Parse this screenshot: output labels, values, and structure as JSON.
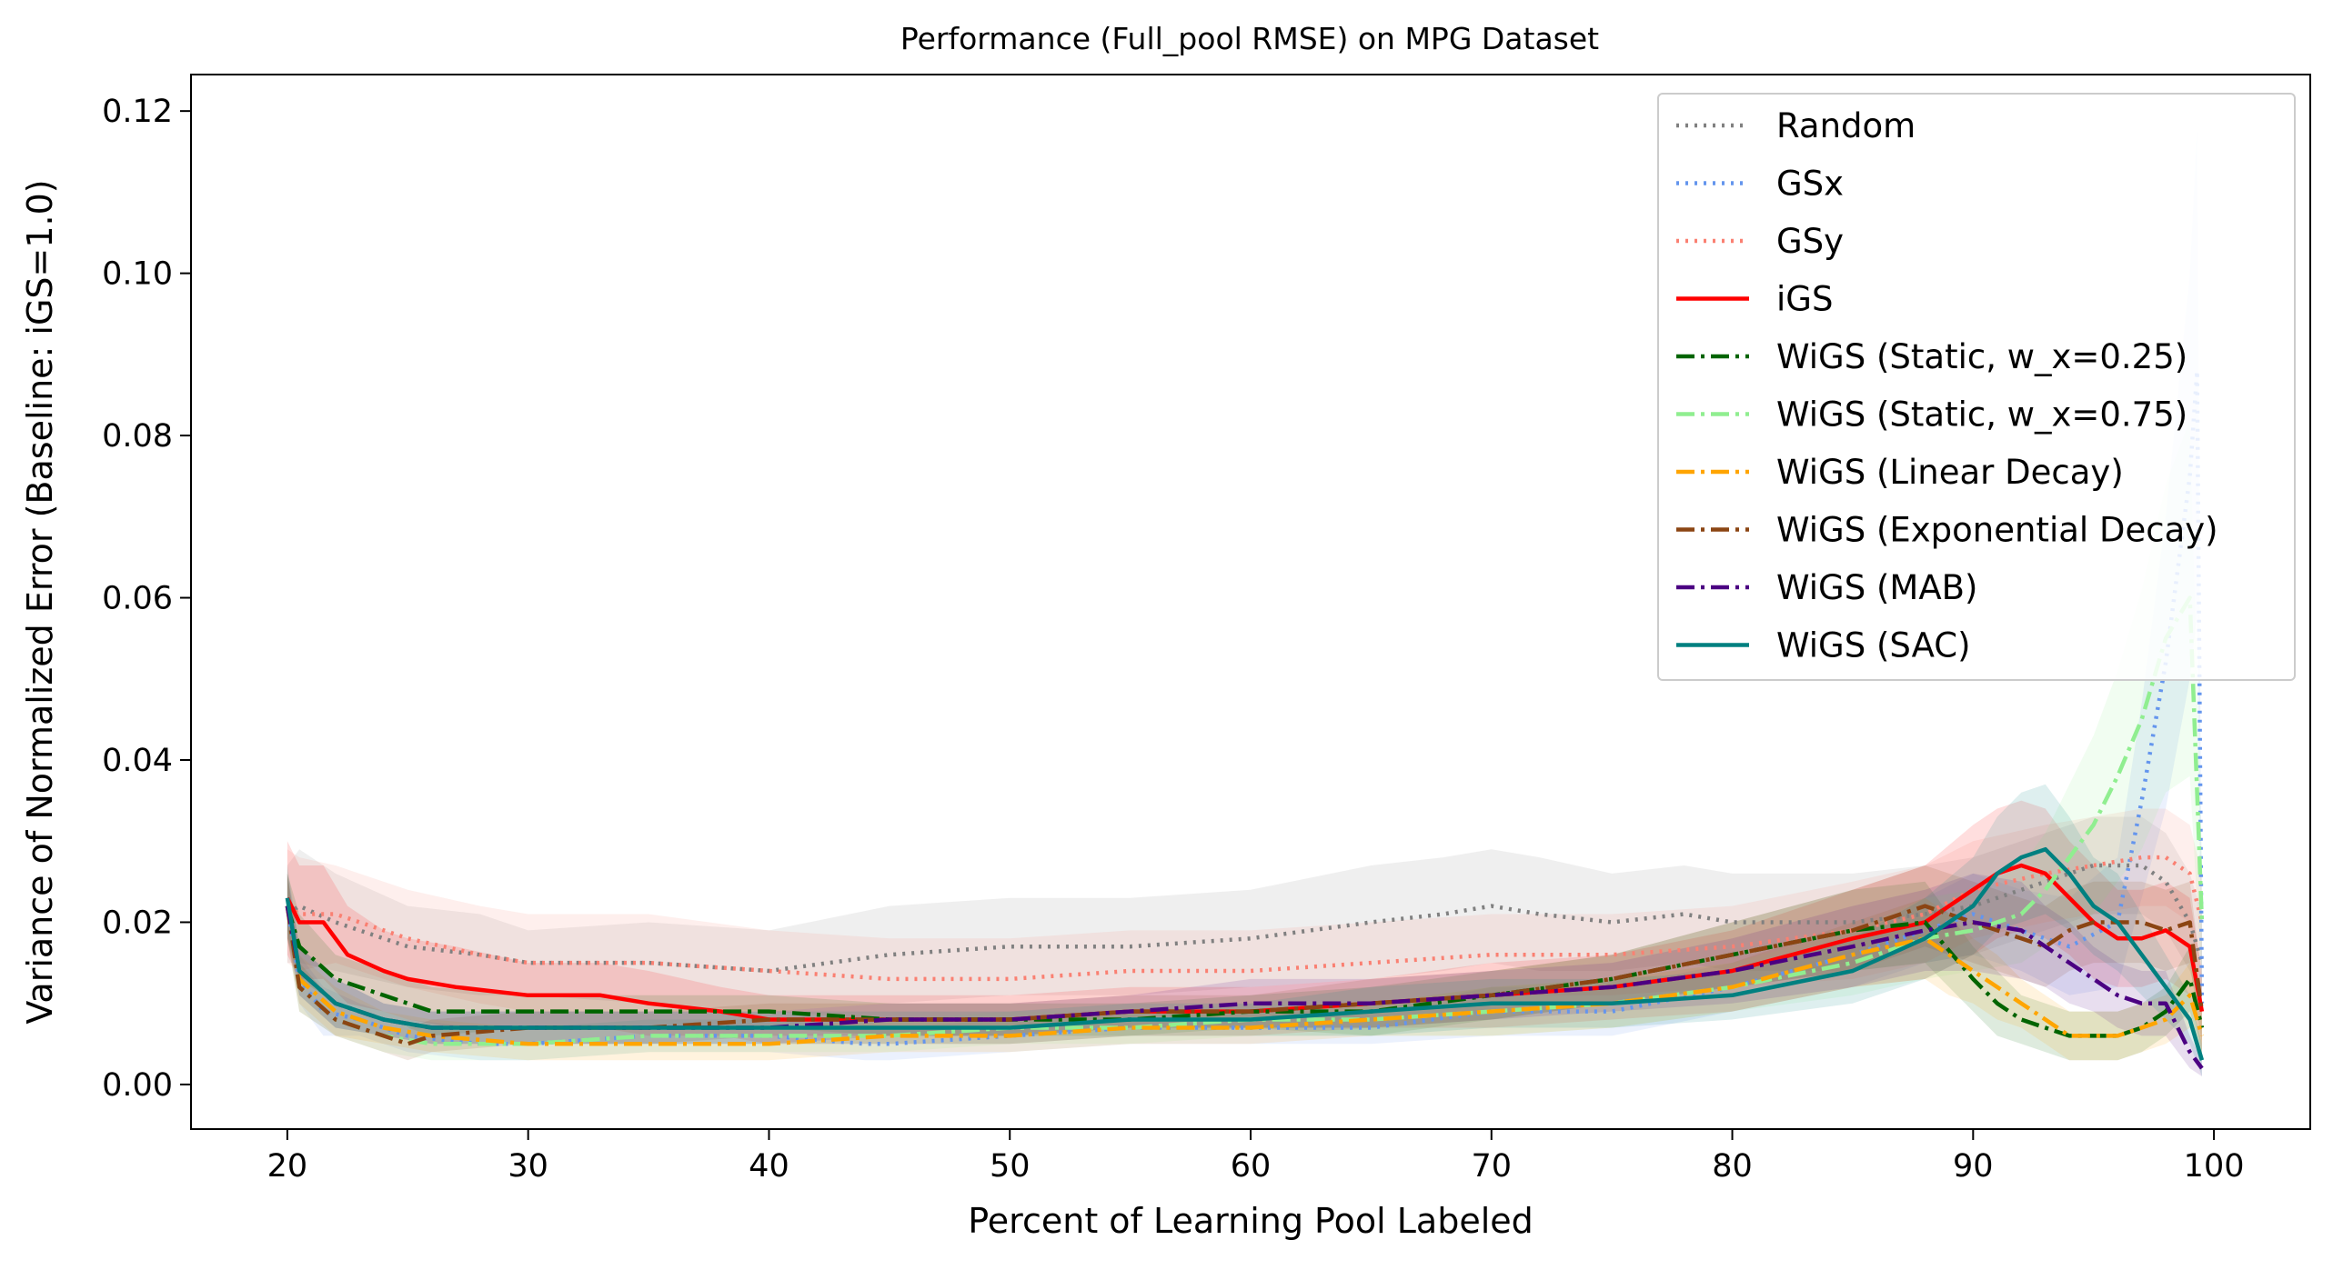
{
  "chart_data": {
    "type": "line",
    "title": "Performance (Full_pool RMSE) on MPG Dataset",
    "xlabel": "Percent of Learning Pool Labeled",
    "ylabel": "Variance of Normalized Error (Baseline: iGS=1.0)",
    "xlim": [
      16,
      104
    ],
    "ylim": [
      -0.0055,
      0.1245
    ],
    "x_ticks": [
      "20",
      "30",
      "40",
      "50",
      "60",
      "70",
      "80",
      "90",
      "100"
    ],
    "y_ticks": [
      "0.00",
      "0.02",
      "0.04",
      "0.06",
      "0.08",
      "0.10",
      "0.12"
    ],
    "grid": false,
    "legend_position": "top-right",
    "series": [
      {
        "name": "Random",
        "color": "#808080",
        "style": "dotted",
        "x": [
          20,
          20.5,
          22,
          25,
          28,
          30,
          35,
          40,
          45,
          50,
          55,
          60,
          65,
          68,
          70,
          72,
          75,
          78,
          80,
          85,
          88,
          90,
          92,
          95,
          97,
          98,
          99,
          99.5
        ],
        "y": [
          0.021,
          0.022,
          0.02,
          0.017,
          0.016,
          0.015,
          0.015,
          0.014,
          0.016,
          0.017,
          0.017,
          0.018,
          0.02,
          0.021,
          0.022,
          0.021,
          0.02,
          0.021,
          0.02,
          0.02,
          0.021,
          0.022,
          0.024,
          0.027,
          0.027,
          0.025,
          0.02,
          0.015
        ],
        "band": [
          0.006,
          0.007,
          0.006,
          0.005,
          0.005,
          0.004,
          0.005,
          0.005,
          0.006,
          0.006,
          0.006,
          0.006,
          0.007,
          0.007,
          0.007,
          0.007,
          0.006,
          0.006,
          0.006,
          0.006,
          0.006,
          0.006,
          0.006,
          0.006,
          0.006,
          0.006,
          0.006,
          0.006
        ]
      },
      {
        "name": "GSx",
        "color": "#6495ED",
        "style": "dotted",
        "x": [
          20,
          20.5,
          21.5,
          23,
          25,
          28,
          30,
          35,
          40,
          44,
          45,
          50,
          55,
          60,
          65,
          70,
          75,
          80,
          85,
          88,
          90,
          92,
          94,
          96,
          97,
          98,
          99,
          99.3,
          99.5
        ],
        "y": [
          0.022,
          0.013,
          0.009,
          0.008,
          0.006,
          0.005,
          0.005,
          0.006,
          0.006,
          0.005,
          0.005,
          0.006,
          0.007,
          0.007,
          0.007,
          0.009,
          0.009,
          0.012,
          0.016,
          0.019,
          0.021,
          0.019,
          0.017,
          0.02,
          0.035,
          0.052,
          0.075,
          0.088,
          0.01
        ],
        "band": [
          0.004,
          0.003,
          0.003,
          0.002,
          0.002,
          0.002,
          0.002,
          0.002,
          0.002,
          0.002,
          0.002,
          0.002,
          0.002,
          0.002,
          0.002,
          0.003,
          0.003,
          0.003,
          0.004,
          0.004,
          0.005,
          0.005,
          0.006,
          0.008,
          0.012,
          0.018,
          0.025,
          0.03,
          0.004
        ]
      },
      {
        "name": "GSy",
        "color": "#FA8072",
        "style": "dotted",
        "x": [
          20,
          20.5,
          22,
          25,
          28,
          30,
          35,
          40,
          45,
          50,
          55,
          60,
          65,
          70,
          75,
          80,
          85,
          88,
          90,
          93,
          95,
          97,
          98,
          99,
          99.5
        ],
        "y": [
          0.022,
          0.021,
          0.021,
          0.018,
          0.016,
          0.015,
          0.015,
          0.014,
          0.013,
          0.013,
          0.014,
          0.014,
          0.015,
          0.016,
          0.016,
          0.017,
          0.019,
          0.021,
          0.024,
          0.026,
          0.027,
          0.028,
          0.028,
          0.026,
          0.02
        ],
        "band": [
          0.007,
          0.007,
          0.006,
          0.006,
          0.006,
          0.006,
          0.006,
          0.005,
          0.005,
          0.005,
          0.005,
          0.005,
          0.005,
          0.005,
          0.005,
          0.005,
          0.006,
          0.006,
          0.006,
          0.006,
          0.006,
          0.006,
          0.006,
          0.006,
          0.006
        ]
      },
      {
        "name": "iGS",
        "color": "#FF0000",
        "style": "solid",
        "x": [
          20,
          20.5,
          21.5,
          22.5,
          24,
          25,
          27,
          30,
          33,
          35,
          38,
          40,
          45,
          50,
          55,
          60,
          65,
          70,
          75,
          80,
          85,
          88,
          90,
          91,
          92,
          93,
          94,
          95,
          96,
          97,
          98,
          99,
          99.5
        ],
        "y": [
          0.023,
          0.02,
          0.02,
          0.016,
          0.014,
          0.013,
          0.012,
          0.011,
          0.011,
          0.01,
          0.009,
          0.008,
          0.008,
          0.008,
          0.009,
          0.009,
          0.01,
          0.011,
          0.012,
          0.014,
          0.018,
          0.02,
          0.024,
          0.026,
          0.027,
          0.026,
          0.023,
          0.02,
          0.018,
          0.018,
          0.019,
          0.017,
          0.009
        ],
        "band": [
          0.007,
          0.007,
          0.007,
          0.006,
          0.005,
          0.005,
          0.005,
          0.004,
          0.004,
          0.004,
          0.003,
          0.003,
          0.003,
          0.003,
          0.003,
          0.003,
          0.003,
          0.004,
          0.004,
          0.005,
          0.006,
          0.007,
          0.008,
          0.008,
          0.008,
          0.008,
          0.007,
          0.007,
          0.006,
          0.006,
          0.006,
          0.006,
          0.005
        ]
      },
      {
        "name": "WiGS (Static, w_x=0.25)",
        "color": "#006400",
        "style": "dashdot",
        "x": [
          20,
          20.5,
          22,
          24,
          26,
          30,
          35,
          40,
          45,
          50,
          55,
          60,
          65,
          70,
          75,
          80,
          85,
          88,
          90,
          91,
          92,
          93,
          94,
          95,
          96,
          97,
          98,
          99,
          99.5
        ],
        "y": [
          0.022,
          0.017,
          0.013,
          0.011,
          0.009,
          0.009,
          0.009,
          0.009,
          0.008,
          0.008,
          0.008,
          0.009,
          0.009,
          0.011,
          0.013,
          0.016,
          0.019,
          0.02,
          0.013,
          0.01,
          0.008,
          0.007,
          0.006,
          0.006,
          0.006,
          0.007,
          0.009,
          0.013,
          0.007
        ],
        "band": [
          0.004,
          0.004,
          0.003,
          0.003,
          0.003,
          0.002,
          0.002,
          0.002,
          0.002,
          0.002,
          0.002,
          0.002,
          0.003,
          0.003,
          0.003,
          0.004,
          0.005,
          0.005,
          0.004,
          0.004,
          0.003,
          0.003,
          0.003,
          0.003,
          0.003,
          0.003,
          0.003,
          0.004,
          0.003
        ]
      },
      {
        "name": "WiGS (Static, w_x=0.75)",
        "color": "#90EE90",
        "style": "dashdot",
        "x": [
          20,
          20.5,
          22,
          24,
          26,
          30,
          35,
          40,
          45,
          50,
          55,
          60,
          65,
          70,
          75,
          80,
          85,
          88,
          90,
          92,
          93,
          94,
          95,
          96,
          97,
          98,
          99,
          99.5
        ],
        "y": [
          0.022,
          0.012,
          0.008,
          0.006,
          0.005,
          0.005,
          0.006,
          0.006,
          0.006,
          0.007,
          0.007,
          0.008,
          0.008,
          0.009,
          0.01,
          0.012,
          0.015,
          0.018,
          0.019,
          0.021,
          0.024,
          0.028,
          0.032,
          0.038,
          0.045,
          0.055,
          0.06,
          0.02
        ],
        "band": [
          0.004,
          0.003,
          0.002,
          0.002,
          0.002,
          0.002,
          0.002,
          0.002,
          0.002,
          0.002,
          0.002,
          0.002,
          0.002,
          0.003,
          0.003,
          0.003,
          0.004,
          0.005,
          0.005,
          0.006,
          0.007,
          0.009,
          0.011,
          0.013,
          0.016,
          0.019,
          0.022,
          0.008
        ]
      },
      {
        "name": "WiGS (Linear Decay)",
        "color": "#FFA500",
        "style": "dashdot",
        "x": [
          20,
          20.5,
          22,
          24,
          26,
          30,
          35,
          40,
          45,
          50,
          55,
          60,
          65,
          70,
          75,
          80,
          85,
          88,
          89,
          90,
          91,
          92,
          93,
          94,
          95,
          96,
          97,
          98,
          99,
          99.5
        ],
        "y": [
          0.022,
          0.013,
          0.009,
          0.007,
          0.006,
          0.005,
          0.005,
          0.005,
          0.006,
          0.006,
          0.007,
          0.007,
          0.008,
          0.009,
          0.01,
          0.012,
          0.016,
          0.018,
          0.016,
          0.014,
          0.012,
          0.01,
          0.008,
          0.006,
          0.006,
          0.006,
          0.007,
          0.008,
          0.011,
          0.006
        ],
        "band": [
          0.004,
          0.003,
          0.003,
          0.002,
          0.002,
          0.002,
          0.002,
          0.002,
          0.002,
          0.002,
          0.002,
          0.002,
          0.002,
          0.003,
          0.003,
          0.003,
          0.004,
          0.005,
          0.005,
          0.004,
          0.004,
          0.003,
          0.003,
          0.003,
          0.003,
          0.003,
          0.003,
          0.003,
          0.004,
          0.003
        ]
      },
      {
        "name": "WiGS (Exponential Decay)",
        "color": "#8B4513",
        "style": "dashdot",
        "x": [
          20,
          20.5,
          22,
          24,
          25,
          26,
          30,
          35,
          40,
          45,
          50,
          55,
          60,
          65,
          70,
          75,
          80,
          85,
          87,
          88,
          90,
          92,
          93,
          94,
          95,
          96,
          97,
          98,
          99,
          99.5
        ],
        "y": [
          0.022,
          0.012,
          0.008,
          0.006,
          0.005,
          0.006,
          0.007,
          0.007,
          0.008,
          0.008,
          0.008,
          0.009,
          0.009,
          0.01,
          0.011,
          0.013,
          0.016,
          0.019,
          0.021,
          0.022,
          0.02,
          0.018,
          0.017,
          0.019,
          0.02,
          0.02,
          0.02,
          0.019,
          0.02,
          0.009
        ],
        "band": [
          0.004,
          0.003,
          0.002,
          0.002,
          0.002,
          0.002,
          0.002,
          0.002,
          0.002,
          0.002,
          0.002,
          0.002,
          0.002,
          0.003,
          0.003,
          0.003,
          0.004,
          0.005,
          0.005,
          0.005,
          0.005,
          0.005,
          0.005,
          0.005,
          0.005,
          0.005,
          0.005,
          0.005,
          0.005,
          0.004
        ]
      },
      {
        "name": "WiGS (MAB)",
        "color": "#4B0082",
        "style": "dashdot",
        "x": [
          20,
          20.5,
          22,
          24,
          26,
          30,
          35,
          40,
          45,
          50,
          55,
          60,
          65,
          70,
          75,
          80,
          85,
          88,
          90,
          92,
          93,
          94,
          95,
          96,
          97,
          98,
          99,
          99.5
        ],
        "y": [
          0.022,
          0.014,
          0.01,
          0.008,
          0.007,
          0.007,
          0.007,
          0.007,
          0.008,
          0.008,
          0.009,
          0.01,
          0.01,
          0.011,
          0.012,
          0.014,
          0.017,
          0.019,
          0.02,
          0.019,
          0.017,
          0.015,
          0.013,
          0.011,
          0.01,
          0.01,
          0.004,
          0.002
        ],
        "band": [
          0.004,
          0.003,
          0.003,
          0.002,
          0.002,
          0.002,
          0.002,
          0.002,
          0.002,
          0.002,
          0.002,
          0.003,
          0.003,
          0.003,
          0.003,
          0.004,
          0.005,
          0.005,
          0.006,
          0.006,
          0.005,
          0.005,
          0.004,
          0.004,
          0.004,
          0.004,
          0.002,
          0.001
        ]
      },
      {
        "name": "WiGS (SAC)",
        "color": "#008080",
        "style": "solid",
        "x": [
          20,
          20.5,
          22,
          24,
          26,
          30,
          35,
          40,
          45,
          50,
          55,
          60,
          65,
          70,
          75,
          80,
          85,
          88,
          90,
          91,
          92,
          93,
          94,
          95,
          96,
          97,
          98,
          99,
          99.5
        ],
        "y": [
          0.023,
          0.014,
          0.01,
          0.008,
          0.007,
          0.007,
          0.007,
          0.007,
          0.007,
          0.007,
          0.008,
          0.008,
          0.009,
          0.01,
          0.01,
          0.011,
          0.014,
          0.018,
          0.022,
          0.026,
          0.028,
          0.029,
          0.026,
          0.022,
          0.02,
          0.016,
          0.012,
          0.008,
          0.003
        ],
        "band": [
          0.004,
          0.003,
          0.003,
          0.002,
          0.002,
          0.002,
          0.002,
          0.002,
          0.002,
          0.002,
          0.002,
          0.002,
          0.003,
          0.003,
          0.003,
          0.003,
          0.004,
          0.005,
          0.006,
          0.007,
          0.008,
          0.008,
          0.007,
          0.006,
          0.006,
          0.005,
          0.004,
          0.003,
          0.002
        ]
      }
    ]
  }
}
